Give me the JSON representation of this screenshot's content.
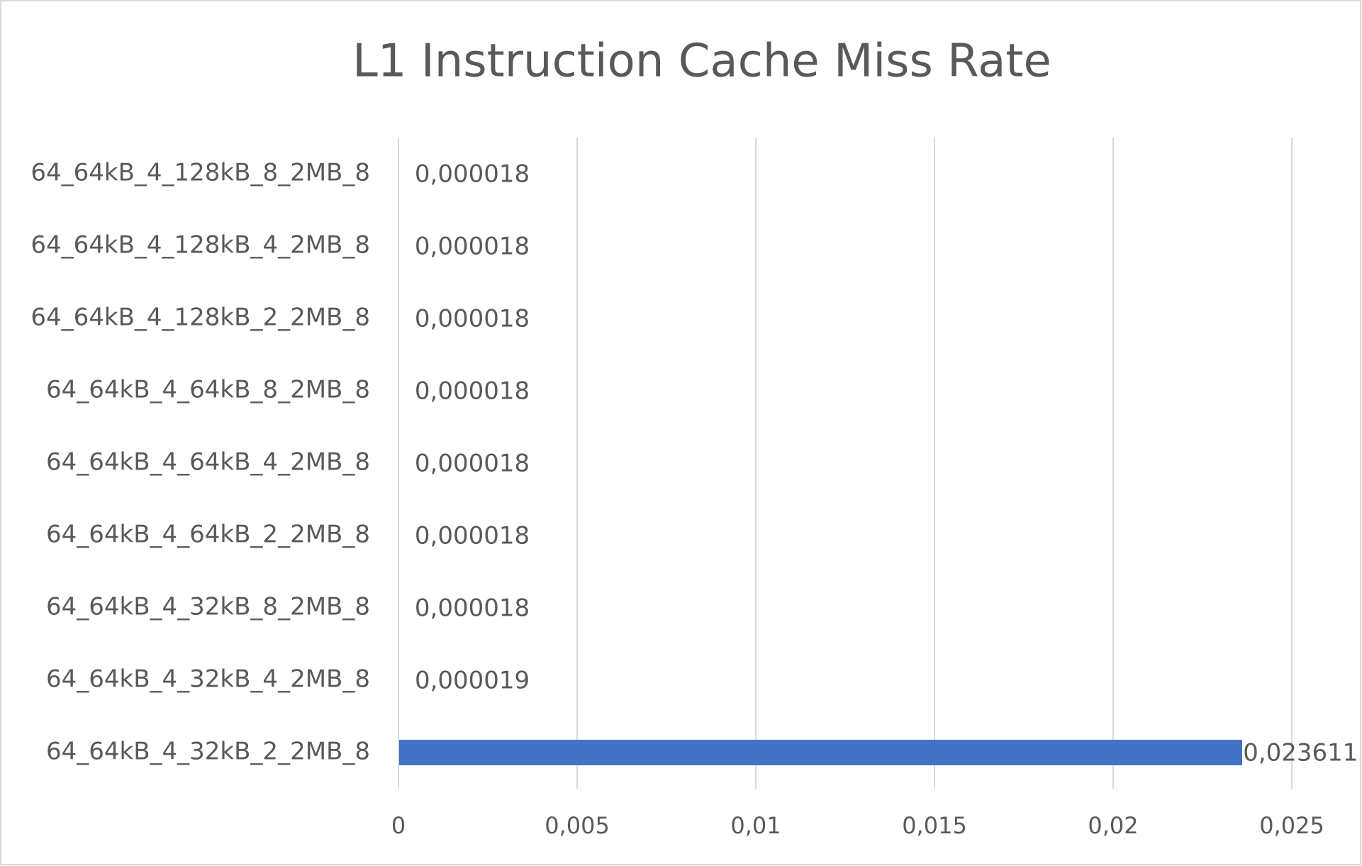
{
  "chart_data": {
    "type": "barh",
    "title": "L1 Instruction Cache Miss Rate",
    "categories": [
      "64_64kB_4_32kB_2_2MB_8",
      "64_64kB_4_32kB_4_2MB_8",
      "64_64kB_4_32kB_8_2MB_8",
      "64_64kB_4_64kB_2_2MB_8",
      "64_64kB_4_64kB_4_2MB_8",
      "64_64kB_4_64kB_8_2MB_8",
      "64_64kB_4_128kB_2_2MB_8",
      "64_64kB_4_128kB_4_2MB_8",
      "64_64kB_4_128kB_8_2MB_8"
    ],
    "values": [
      0.023611,
      1.9e-05,
      1.8e-05,
      1.8e-05,
      1.8e-05,
      1.8e-05,
      1.8e-05,
      1.8e-05,
      1.8e-05
    ],
    "value_labels": [
      "0,023611",
      "0,000019",
      "0,000018",
      "0,000018",
      "0,000018",
      "0,000018",
      "0,000018",
      "0,000018",
      "0,000018"
    ],
    "color": "#4472c4",
    "xlim": [
      0,
      0.025
    ],
    "xticks": [
      0,
      {
        "value": 0.005,
        "label": "0,005"
      },
      {
        "value": 0.01,
        "label": "0,01"
      },
      {
        "value": 0.015,
        "label": "0,015"
      },
      {
        "value": 0.02,
        "label": "0,02"
      },
      {
        "value": 0.025,
        "label": "0,025"
      }
    ],
    "grid": true
  }
}
